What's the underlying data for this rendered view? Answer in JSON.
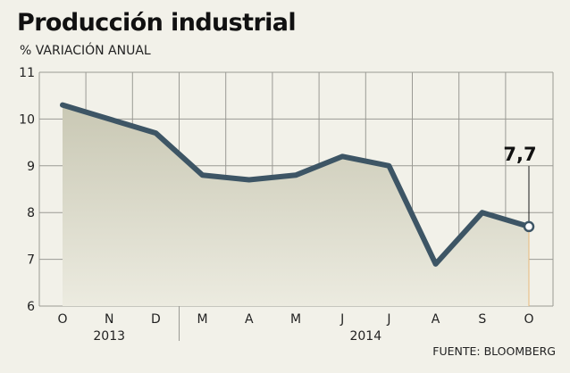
{
  "chart_data": {
    "type": "area",
    "title": "Producción industrial",
    "subtitle": "% VARIACIÓN ANUAL",
    "source": "FUENTE: BLOOMBERG",
    "categories": [
      "O",
      "N",
      "D",
      "M",
      "A",
      "M",
      "J",
      "J",
      "A",
      "S",
      "O"
    ],
    "year_labels": [
      "2013",
      "2014"
    ],
    "values": [
      10.3,
      10.0,
      9.7,
      8.8,
      8.7,
      8.8,
      9.2,
      9.0,
      6.9,
      8.0,
      7.7
    ],
    "ylim": [
      6,
      11
    ],
    "yticks": [
      "6",
      "7",
      "8",
      "9",
      "10",
      "11"
    ],
    "grid": true,
    "annotation": {
      "label": "7,7",
      "index": 10
    },
    "colors": {
      "line": "#3d5565",
      "area_top": "#c9c8b4",
      "area_bottom": "#ecebe0",
      "background": "#f2f1e9",
      "grid": "#9a9a94",
      "marker_fill": "#ffffff",
      "leader": "#e8b97a"
    }
  }
}
